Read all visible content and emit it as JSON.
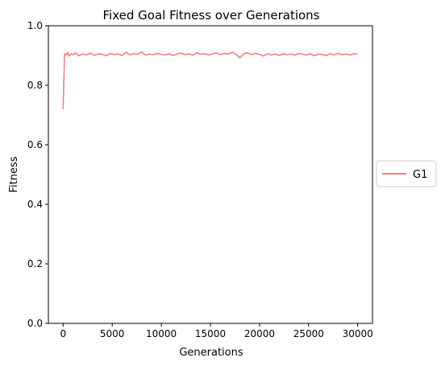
{
  "chart_data": {
    "type": "line",
    "title": "Fixed Goal Fitness over Generations",
    "xlabel": "Generations",
    "ylabel": "Fitness",
    "xlim": [
      -1500,
      31500
    ],
    "ylim": [
      0.0,
      1.0
    ],
    "xticks": [
      0,
      5000,
      10000,
      15000,
      20000,
      25000,
      30000
    ],
    "xtick_labels": [
      "0",
      "5000",
      "10000",
      "15000",
      "20000",
      "25000",
      "30000"
    ],
    "yticks": [
      0.0,
      0.2,
      0.4,
      0.6,
      0.8,
      1.0
    ],
    "ytick_labels": [
      "0.0",
      "0.2",
      "0.4",
      "0.6",
      "0.8",
      "1.0"
    ],
    "grid": false,
    "legend_position": "center-right-outside",
    "series": [
      {
        "name": "G1",
        "color": "#f08080",
        "x": [
          0,
          150,
          300,
          450,
          600,
          800,
          1000,
          1300,
          1600,
          2000,
          2400,
          2800,
          3200,
          3600,
          4000,
          4400,
          4800,
          5200,
          5600,
          6000,
          6400,
          6800,
          7200,
          7600,
          8000,
          8400,
          8800,
          9200,
          9600,
          10000,
          10400,
          10800,
          11200,
          11600,
          12000,
          12400,
          12800,
          13200,
          13600,
          14000,
          14400,
          14800,
          15200,
          15600,
          16000,
          16400,
          16800,
          17200,
          17600,
          18000,
          18400,
          18800,
          19200,
          19600,
          20000,
          20400,
          20800,
          21200,
          21600,
          22000,
          22400,
          22800,
          23200,
          23600,
          24000,
          24400,
          24800,
          25200,
          25600,
          26000,
          26400,
          26800,
          27200,
          27600,
          28000,
          28400,
          28800,
          29200,
          29600,
          30000
        ],
        "y": [
          0.72,
          0.905,
          0.902,
          0.91,
          0.898,
          0.906,
          0.903,
          0.909,
          0.899,
          0.905,
          0.902,
          0.908,
          0.9,
          0.906,
          0.904,
          0.899,
          0.907,
          0.903,
          0.905,
          0.9,
          0.911,
          0.902,
          0.906,
          0.904,
          0.912,
          0.901,
          0.905,
          0.903,
          0.907,
          0.904,
          0.902,
          0.906,
          0.9,
          0.905,
          0.908,
          0.903,
          0.906,
          0.901,
          0.909,
          0.904,
          0.906,
          0.902,
          0.905,
          0.909,
          0.903,
          0.907,
          0.905,
          0.911,
          0.904,
          0.892,
          0.906,
          0.909,
          0.903,
          0.907,
          0.904,
          0.898,
          0.906,
          0.902,
          0.905,
          0.9,
          0.906,
          0.903,
          0.905,
          0.901,
          0.907,
          0.904,
          0.902,
          0.906,
          0.899,
          0.905,
          0.903,
          0.9,
          0.906,
          0.902,
          0.907,
          0.903,
          0.905,
          0.902,
          0.906,
          0.905
        ]
      }
    ]
  }
}
